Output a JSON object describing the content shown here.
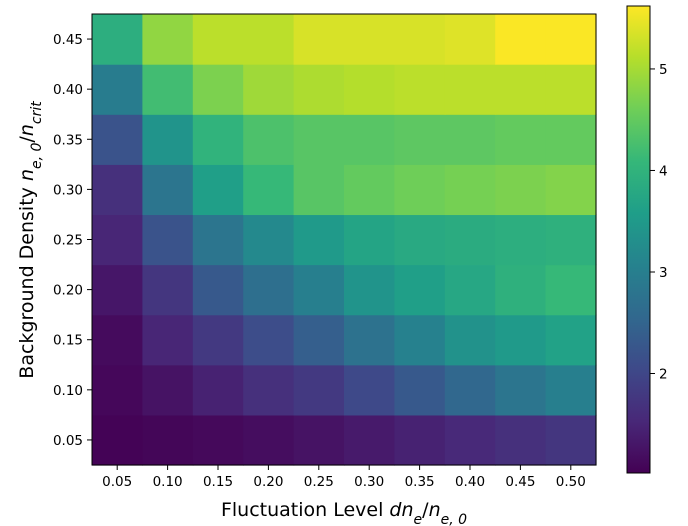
{
  "chart_data": {
    "type": "heatmap",
    "xlabel_parts": [
      {
        "text": "Fluctuation Level ",
        "italic": false
      },
      {
        "text": "dn",
        "italic": true
      },
      {
        "text": "e",
        "italic": true,
        "sub": true
      },
      {
        "text": "/",
        "italic": false
      },
      {
        "text": "n",
        "italic": true
      },
      {
        "text": "e, 0",
        "italic": true,
        "sub": true
      }
    ],
    "ylabel_parts": [
      {
        "text": "Background Density ",
        "italic": false
      },
      {
        "text": "n",
        "italic": true
      },
      {
        "text": "e, 0",
        "italic": true,
        "sub": true
      },
      {
        "text": "/",
        "italic": false
      },
      {
        "text": "n",
        "italic": true
      },
      {
        "text": "crit",
        "italic": true,
        "sub": true
      }
    ],
    "x": [
      "0.05",
      "0.10",
      "0.15",
      "0.20",
      "0.25",
      "0.30",
      "0.35",
      "0.40",
      "0.45",
      "0.50"
    ],
    "y": [
      "0.05",
      "0.10",
      "0.15",
      "0.20",
      "0.25",
      "0.30",
      "0.35",
      "0.40",
      "0.45"
    ],
    "values": [
      [
        1.05,
        1.08,
        1.12,
        1.18,
        1.25,
        1.35,
        1.45,
        1.55,
        1.65,
        1.75
      ],
      [
        1.1,
        1.25,
        1.45,
        1.65,
        1.8,
        2.05,
        2.3,
        2.55,
        2.8,
        3.0
      ],
      [
        1.15,
        1.5,
        1.8,
        2.1,
        2.4,
        2.75,
        3.05,
        3.35,
        3.5,
        3.65
      ],
      [
        1.3,
        1.75,
        2.3,
        2.7,
        3.0,
        3.4,
        3.6,
        3.75,
        3.95,
        4.1
      ],
      [
        1.5,
        2.2,
        2.8,
        3.2,
        3.5,
        3.7,
        3.8,
        3.85,
        3.9,
        3.95
      ],
      [
        1.65,
        2.8,
        3.6,
        4.1,
        4.4,
        4.5,
        4.6,
        4.65,
        4.7,
        4.75
      ],
      [
        2.2,
        3.4,
        4.0,
        4.3,
        4.4,
        4.4,
        4.45,
        4.45,
        4.5,
        4.5
      ],
      [
        2.95,
        4.2,
        4.7,
        4.95,
        5.05,
        5.1,
        5.15,
        5.15,
        5.15,
        5.15
      ],
      [
        3.9,
        4.85,
        5.15,
        5.15,
        5.35,
        5.35,
        5.35,
        5.4,
        5.6,
        5.6
      ]
    ],
    "colorbar": {
      "range": [
        1.02,
        5.62
      ],
      "ticks": [
        2,
        3,
        4,
        5
      ],
      "colormap": "viridis"
    },
    "colormap_stops": [
      "#440154",
      "#482878",
      "#3e4989",
      "#31688e",
      "#26828e",
      "#1f9e89",
      "#35b779",
      "#6ece58",
      "#b5de2b",
      "#fde725"
    ]
  }
}
